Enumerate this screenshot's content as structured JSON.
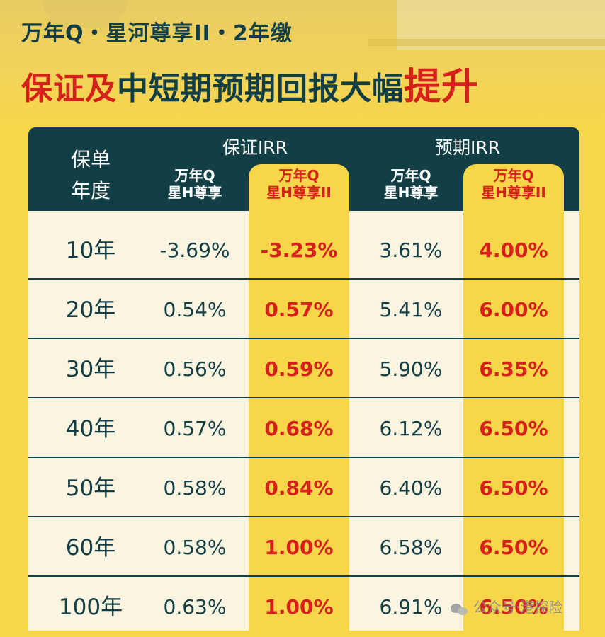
{
  "header": {
    "title_line1": "万年Q・星河尊享II・2年缴",
    "title_line2_part1": "保证及",
    "title_line2_part2": "中短期预期回报大幅",
    "title_line2_part3": "提升"
  },
  "table": {
    "year_header": [
      "保单",
      "年度"
    ],
    "group_guaranteed": "保证IRR",
    "group_expected": "预期IRR",
    "sub_old": [
      "万年Q",
      "星H尊享"
    ],
    "sub_new": [
      "万年Q",
      "星H尊享II"
    ],
    "rows": [
      {
        "year": "10年",
        "g_old": "-3.69%",
        "g_new": "-3.23%",
        "e_old": "3.61%",
        "e_new": "4.00%"
      },
      {
        "year": "20年",
        "g_old": "0.54%",
        "g_new": "0.57%",
        "e_old": "5.41%",
        "e_new": "6.00%"
      },
      {
        "year": "30年",
        "g_old": "0.56%",
        "g_new": "0.59%",
        "e_old": "5.90%",
        "e_new": "6.35%"
      },
      {
        "year": "40年",
        "g_old": "0.57%",
        "g_new": "0.68%",
        "e_old": "6.12%",
        "e_new": "6.50%"
      },
      {
        "year": "50年",
        "g_old": "0.58%",
        "g_new": "0.84%",
        "e_old": "6.40%",
        "e_new": "6.50%"
      },
      {
        "year": "60年",
        "g_old": "0.58%",
        "g_new": "1.00%",
        "e_old": "6.58%",
        "e_new": "6.50%"
      },
      {
        "year": "100年",
        "g_old": "0.63%",
        "g_new": "1.00%",
        "e_old": "6.91%",
        "e_new": "6.50%"
      }
    ]
  },
  "watermark": {
    "text": "公众号·港探险",
    "icon": "wechat-icon"
  },
  "colors": {
    "background": "#f7d64a",
    "header_bg": "#123f46",
    "row_bg": "#fbf4e1",
    "accent_red": "#d6201b",
    "dark_text": "#123f46"
  }
}
